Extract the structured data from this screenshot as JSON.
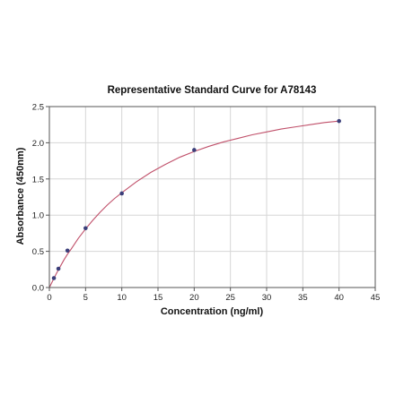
{
  "chart_data": {
    "type": "scatter",
    "title": "Representative Standard Curve for A78143",
    "xlabel": "Concentration (ng/ml)",
    "ylabel": "Absorbance (450nm)",
    "xlim": [
      0,
      45
    ],
    "ylim": [
      0,
      2.5
    ],
    "xticks": [
      0,
      5,
      10,
      15,
      20,
      25,
      30,
      35,
      40,
      45
    ],
    "xtick_labels": [
      "0",
      "5",
      "10",
      "15",
      "20",
      "25",
      "30",
      "35",
      "40",
      "45"
    ],
    "yticks": [
      0,
      0.5,
      1.0,
      1.5,
      2.0,
      2.5
    ],
    "ytick_labels": [
      "0.0",
      "0.5",
      "1.0",
      "1.5",
      "2.0",
      "2.5"
    ],
    "grid": true,
    "series": [
      {
        "type": "scatter",
        "x": [
          0.625,
          1.25,
          2.5,
          5,
          10,
          20,
          40
        ],
        "y": [
          0.13,
          0.26,
          0.51,
          0.82,
          1.3,
          1.9,
          2.3
        ],
        "color": "#3b3f7a"
      },
      {
        "type": "line",
        "x": [
          0,
          0.5,
          1,
          1.5,
          2,
          2.5,
          3,
          4,
          5,
          6,
          7,
          8,
          9,
          10,
          12,
          14,
          16,
          18,
          20,
          22,
          24,
          26,
          28,
          30,
          32,
          34,
          36,
          38,
          40
        ],
        "y": [
          0.0,
          0.1,
          0.2,
          0.29,
          0.38,
          0.46,
          0.53,
          0.68,
          0.81,
          0.93,
          1.04,
          1.14,
          1.23,
          1.31,
          1.46,
          1.59,
          1.7,
          1.8,
          1.88,
          1.95,
          2.01,
          2.06,
          2.11,
          2.15,
          2.19,
          2.22,
          2.25,
          2.28,
          2.3
        ],
        "color": "#c0506a"
      }
    ]
  }
}
